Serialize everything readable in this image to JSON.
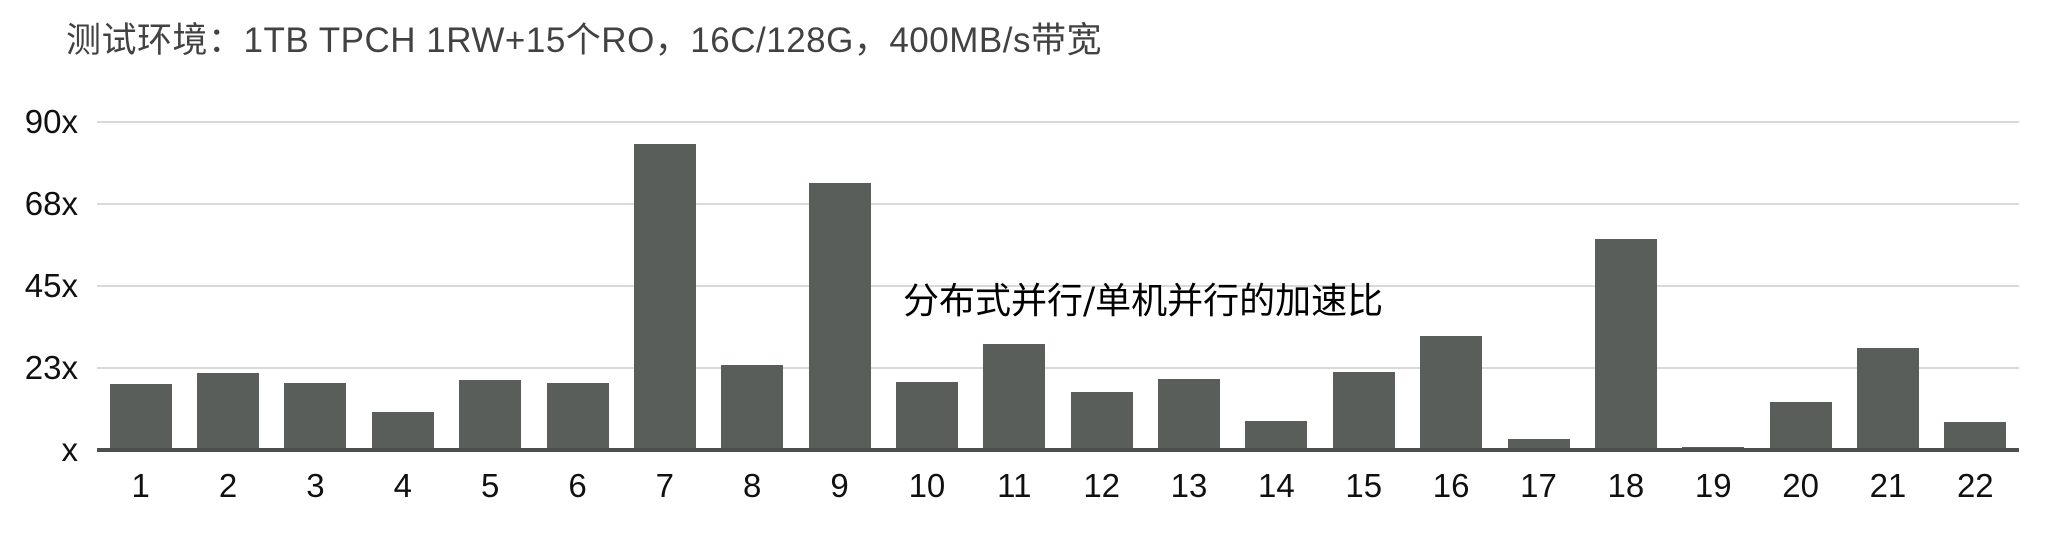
{
  "title": "测试环境：1TB TPCH 1RW+15个RO，16C/128G，400MB/s带宽",
  "annotation": "分布式并行/单机并行的加速比",
  "colors": {
    "bar": "#595e5b",
    "gridline": "#d9d9d9",
    "axis_line": "#4b504d",
    "title_text": "#424242",
    "tick_text": "#101010",
    "background": "#ffffff"
  },
  "chart_data": {
    "type": "bar",
    "title": "测试环境：1TB TPCH 1RW+15个RO，16C/128G，400MB/s带宽",
    "annotation": "分布式并行/单机并行的加速比",
    "categories": [
      "1",
      "2",
      "3",
      "4",
      "5",
      "6",
      "7",
      "8",
      "9",
      "10",
      "11",
      "12",
      "13",
      "14",
      "15",
      "16",
      "17",
      "18",
      "19",
      "20",
      "21",
      "22"
    ],
    "values": [
      18,
      21,
      18.3,
      10.4,
      19.2,
      18.4,
      84,
      23.3,
      73.3,
      18.8,
      29,
      15.8,
      19.4,
      8,
      21.3,
      31.4,
      3,
      58,
      0.9,
      13.2,
      28,
      7.6
    ],
    "xlabel": "",
    "ylabel": "",
    "ylim": [
      0,
      90
    ],
    "y_ticks": [
      {
        "value": 90,
        "label": "90x"
      },
      {
        "value": 67.5,
        "label": "68x"
      },
      {
        "value": 45,
        "label": "45x"
      },
      {
        "value": 22.5,
        "label": "23x"
      },
      {
        "value": 0,
        "label": "x"
      }
    ],
    "grid": true,
    "legend": false,
    "series_unit": "speedup (x)"
  }
}
